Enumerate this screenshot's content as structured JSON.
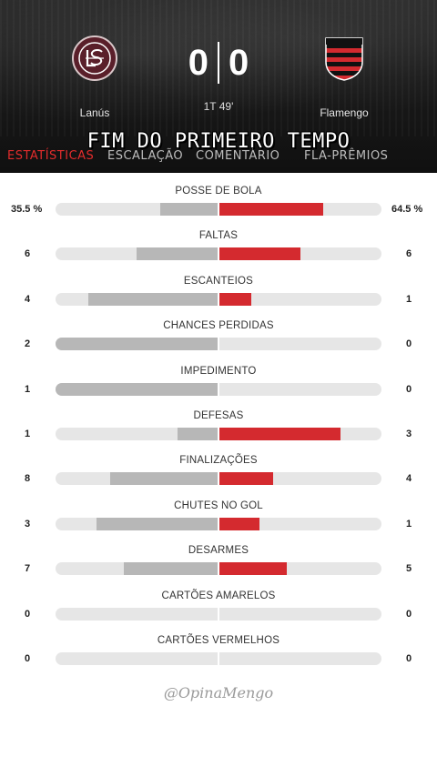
{
  "match": {
    "home_team": "Lanús",
    "away_team": "Flamengo",
    "home_score": "0",
    "away_score": "0",
    "clock": "1T 49'"
  },
  "overlay_title": "FIM DO PRIMEIRO TEMPO",
  "tabs": [
    {
      "label": "ESTATÍSTICAS",
      "active": true
    },
    {
      "label": "ESCALAÇÃO",
      "active": false
    },
    {
      "label": "COMENTÁRIO",
      "active": false
    },
    {
      "label": "FLA-PRÊMIOS",
      "active": false
    }
  ],
  "colors": {
    "home_bar": "#b7b7b7",
    "away_bar": "#d42a2f",
    "active_tab": "#e32c2c"
  },
  "stats": [
    {
      "label": "POSSE DE BOLA",
      "home": "35.5 %",
      "away": "64.5 %",
      "home_share": 0.355,
      "away_share": 0.645
    },
    {
      "label": "FALTAS",
      "home": "6",
      "away": "6",
      "home_share": 0.5,
      "away_share": 0.5
    },
    {
      "label": "ESCANTEIOS",
      "home": "4",
      "away": "1",
      "home_share": 0.8,
      "away_share": 0.2
    },
    {
      "label": "CHANCES PERDIDAS",
      "home": "2",
      "away": "0",
      "home_share": 1.0,
      "away_share": 0.0
    },
    {
      "label": "IMPEDIMENTO",
      "home": "1",
      "away": "0",
      "home_share": 1.0,
      "away_share": 0.0
    },
    {
      "label": "DEFESAS",
      "home": "1",
      "away": "3",
      "home_share": 0.25,
      "away_share": 0.75
    },
    {
      "label": "FINALIZAÇÕES",
      "home": "8",
      "away": "4",
      "home_share": 0.667,
      "away_share": 0.333
    },
    {
      "label": "CHUTES NO GOL",
      "home": "3",
      "away": "1",
      "home_share": 0.75,
      "away_share": 0.25
    },
    {
      "label": "DESARMES",
      "home": "7",
      "away": "5",
      "home_share": 0.583,
      "away_share": 0.417
    },
    {
      "label": "CARTÕES AMARELOS",
      "home": "0",
      "away": "0",
      "home_share": 0.0,
      "away_share": 0.0
    },
    {
      "label": "CARTÕES VERMELHOS",
      "home": "0",
      "away": "0",
      "home_share": 0.0,
      "away_share": 0.0
    }
  ],
  "watermark": "@OpinaMengo"
}
